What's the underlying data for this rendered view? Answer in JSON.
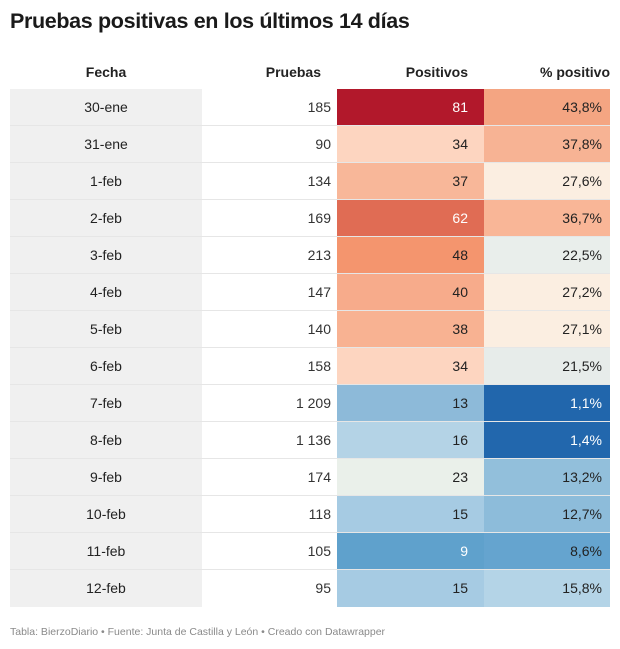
{
  "title": "Pruebas positivas en los últimos 14 días",
  "footer": "Tabla: BierzoDiario • Fuente: Junta de Castilla y León • Creado con Datawrapper",
  "chart_data": {
    "type": "table",
    "title": "Pruebas positivas en los últimos 14 días",
    "columns": [
      "Fecha",
      "Pruebas",
      "Positivos",
      "% positivo"
    ],
    "rows": [
      {
        "fecha": "30-ene",
        "pruebas": "185",
        "positivos": "81",
        "pct": "43,8%",
        "pos_color": "#b2182b",
        "pos_text": "#ffffff",
        "pct_color": "#f4a582",
        "pct_text": "#222222"
      },
      {
        "fecha": "31-ene",
        "pruebas": "90",
        "positivos": "34",
        "pct": "37,8%",
        "pos_color": "#fdd5c0",
        "pos_text": "#222222",
        "pct_color": "#f7b394",
        "pct_text": "#222222"
      },
      {
        "fecha": "1-feb",
        "pruebas": "134",
        "positivos": "37",
        "pct": "27,6%",
        "pos_color": "#f8b799",
        "pos_text": "#222222",
        "pct_color": "#fbeee1",
        "pct_text": "#222222"
      },
      {
        "fecha": "2-feb",
        "pruebas": "169",
        "positivos": "62",
        "pct": "36,7%",
        "pos_color": "#e06c54",
        "pos_text": "#ffffff",
        "pct_color": "#f9b697",
        "pct_text": "#222222"
      },
      {
        "fecha": "3-feb",
        "pruebas": "213",
        "positivos": "48",
        "pct": "22,5%",
        "pos_color": "#f4956e",
        "pos_text": "#222222",
        "pct_color": "#e9eeeb",
        "pct_text": "#222222"
      },
      {
        "fecha": "4-feb",
        "pruebas": "147",
        "positivos": "40",
        "pct": "27,2%",
        "pos_color": "#f7ab8b",
        "pos_text": "#222222",
        "pct_color": "#fbeee1",
        "pct_text": "#222222"
      },
      {
        "fecha": "5-feb",
        "pruebas": "140",
        "positivos": "38",
        "pct": "27,1%",
        "pos_color": "#f8b292",
        "pos_text": "#222222",
        "pct_color": "#fbeee1",
        "pct_text": "#222222"
      },
      {
        "fecha": "6-feb",
        "pruebas": "158",
        "positivos": "34",
        "pct": "21,5%",
        "pos_color": "#fdd5c0",
        "pos_text": "#222222",
        "pct_color": "#e7ecea",
        "pct_text": "#222222"
      },
      {
        "fecha": "7-feb",
        "pruebas": "1 209",
        "positivos": "13",
        "pct": "1,1%",
        "pos_color": "#8dbad9",
        "pos_text": "#222222",
        "pct_color": "#2166ac",
        "pct_text": "#ffffff"
      },
      {
        "fecha": "8-feb",
        "pruebas": "1 136",
        "positivos": "16",
        "pct": "1,4%",
        "pos_color": "#b4d3e6",
        "pos_text": "#222222",
        "pct_color": "#2267ad",
        "pct_text": "#ffffff"
      },
      {
        "fecha": "9-feb",
        "pruebas": "174",
        "positivos": "23",
        "pct": "13,2%",
        "pos_color": "#eaf0ea",
        "pos_text": "#222222",
        "pct_color": "#92bfdb",
        "pct_text": "#222222"
      },
      {
        "fecha": "10-feb",
        "pruebas": "118",
        "positivos": "15",
        "pct": "12,7%",
        "pos_color": "#a6cbe3",
        "pos_text": "#222222",
        "pct_color": "#8dbcda",
        "pct_text": "#222222"
      },
      {
        "fecha": "11-feb",
        "pruebas": "105",
        "positivos": "9",
        "pct": "8,6%",
        "pos_color": "#5fa1cc",
        "pos_text": "#ffffff",
        "pct_color": "#65a4cf",
        "pct_text": "#222222"
      },
      {
        "fecha": "12-feb",
        "pruebas": "95",
        "positivos": "15",
        "pct": "15,8%",
        "pos_color": "#a6cbe3",
        "pos_text": "#222222",
        "pct_color": "#b4d4e7",
        "pct_text": "#222222"
      }
    ]
  }
}
